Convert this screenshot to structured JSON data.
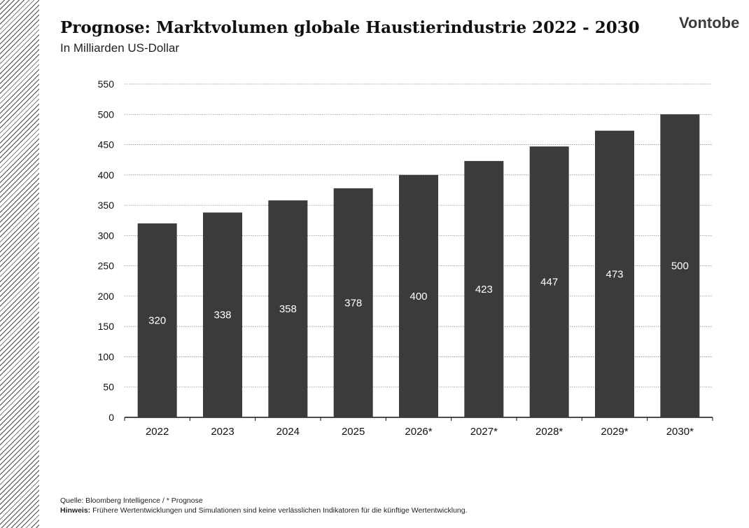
{
  "header": {
    "title": "Prognose: Marktvolumen globale Haustierindustrie 2022 - 2030",
    "subtitle": "In Milliarden US-Dollar",
    "brand": "Vontobe"
  },
  "chart_data": {
    "type": "bar",
    "categories": [
      "2022",
      "2023",
      "2024",
      "2025",
      "2026*",
      "2027*",
      "2028*",
      "2029*",
      "2030*"
    ],
    "values": [
      320,
      338,
      358,
      378,
      400,
      423,
      447,
      473,
      500
    ],
    "data_labels": [
      "320",
      "338",
      "358",
      "378",
      "400",
      "423",
      "447",
      "473",
      "500"
    ],
    "ylim": [
      0,
      550
    ],
    "yticks": [
      0,
      50,
      100,
      150,
      200,
      250,
      300,
      350,
      400,
      450,
      500,
      550
    ],
    "grid": true,
    "legend": "none",
    "bar_color": "#3b3b39",
    "label_color": "#ffffff"
  },
  "footer": {
    "source": "Quelle: Bloomberg Intelligence / * Prognose",
    "note_label": "Hinweis:",
    "note_text": "Frühere Wertentwicklungen und Simulationen sind keine verlässlichen Indikatoren für die künftige Wertentwicklung."
  }
}
